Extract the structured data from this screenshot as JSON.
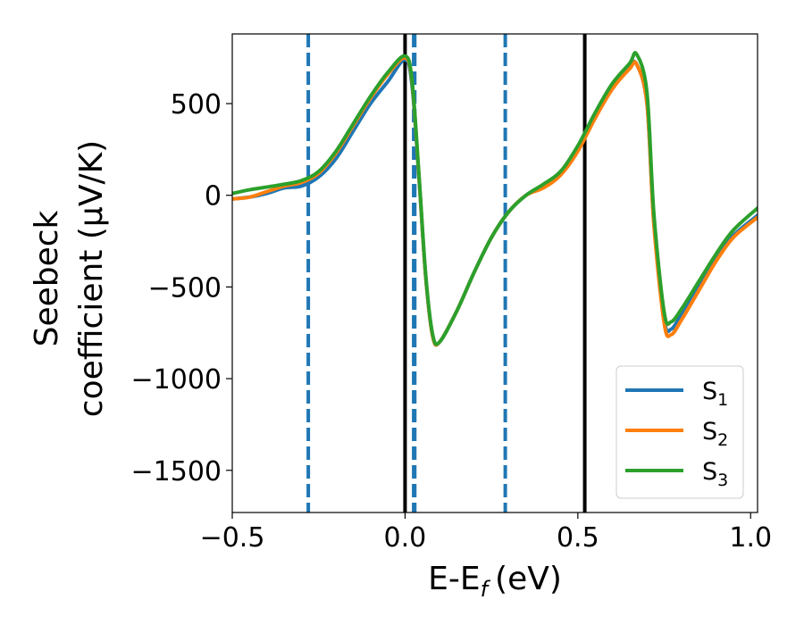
{
  "chart_data": {
    "type": "line",
    "title": "",
    "xlabel": "E-E",
    "xlabel_sub": "f",
    "xlabel_unit": "(eV)",
    "ylabel_line1": "Seebeck",
    "ylabel_line2": "coefficient  (μV/K)",
    "xlim": [
      -0.5,
      1.02
    ],
    "ylim": [
      -1730,
      880
    ],
    "xticks": [
      -0.5,
      0.0,
      0.5,
      1.0
    ],
    "xtick_labels": [
      "−0.5",
      "0.0",
      "0.5",
      "1.0"
    ],
    "yticks": [
      -1500,
      -1000,
      -500,
      0,
      500
    ],
    "ytick_labels": [
      "−1500",
      "−1000",
      "−500",
      "0",
      "500"
    ],
    "grid": false,
    "legend_position": "lower-right",
    "vlines": [
      {
        "x": -0.28,
        "style": "dashed",
        "color": "#1f77b4"
      },
      {
        "x": 0.0,
        "style": "solid",
        "color": "#000000"
      },
      {
        "x": 0.025,
        "style": "dashed",
        "color": "#1f77b4"
      },
      {
        "x": 0.028,
        "style": "dashed",
        "color": "#1f77b4"
      },
      {
        "x": 0.29,
        "style": "dashed",
        "color": "#1f77b4"
      },
      {
        "x": 0.52,
        "style": "solid",
        "color": "#000000"
      }
    ],
    "series": [
      {
        "name": "S",
        "sub": "1",
        "color": "#1f77b4",
        "x": [
          -0.5,
          -0.45,
          -0.4,
          -0.35,
          -0.3,
          -0.25,
          -0.2,
          -0.15,
          -0.1,
          -0.05,
          0.0,
          0.02,
          0.04,
          0.06,
          0.08,
          0.1,
          0.15,
          0.2,
          0.25,
          0.3,
          0.35,
          0.4,
          0.45,
          0.5,
          0.55,
          0.6,
          0.65,
          0.67,
          0.7,
          0.72,
          0.75,
          0.77,
          0.8,
          0.85,
          0.9,
          0.95,
          1.02
        ],
        "y": [
          -20,
          -10,
          10,
          40,
          50,
          100,
          200,
          350,
          500,
          620,
          740,
          600,
          100,
          -450,
          -770,
          -800,
          -630,
          -420,
          -230,
          -90,
          0,
          50,
          120,
          250,
          430,
          590,
          700,
          715,
          500,
          -150,
          -680,
          -730,
          -650,
          -500,
          -350,
          -220,
          -110
        ]
      },
      {
        "name": "S",
        "sub": "2",
        "color": "#ff7f0e",
        "x": [
          -0.5,
          -0.45,
          -0.4,
          -0.35,
          -0.3,
          -0.25,
          -0.2,
          -0.15,
          -0.1,
          -0.05,
          0.0,
          0.02,
          0.04,
          0.06,
          0.08,
          0.1,
          0.15,
          0.2,
          0.25,
          0.3,
          0.35,
          0.4,
          0.45,
          0.5,
          0.55,
          0.6,
          0.65,
          0.67,
          0.7,
          0.72,
          0.75,
          0.77,
          0.8,
          0.85,
          0.9,
          0.95,
          1.02
        ],
        "y": [
          -20,
          -10,
          20,
          50,
          70,
          120,
          230,
          380,
          530,
          660,
          750,
          620,
          110,
          -450,
          -770,
          -800,
          -630,
          -420,
          -230,
          -90,
          0,
          40,
          110,
          240,
          420,
          580,
          690,
          715,
          500,
          -160,
          -700,
          -760,
          -680,
          -520,
          -360,
          -230,
          -120
        ]
      },
      {
        "name": "S",
        "sub": "3",
        "color": "#2ca02c",
        "x": [
          -0.5,
          -0.45,
          -0.4,
          -0.35,
          -0.3,
          -0.25,
          -0.2,
          -0.15,
          -0.1,
          -0.05,
          0.0,
          0.02,
          0.04,
          0.06,
          0.08,
          0.1,
          0.15,
          0.2,
          0.25,
          0.3,
          0.35,
          0.4,
          0.45,
          0.5,
          0.55,
          0.6,
          0.65,
          0.67,
          0.7,
          0.72,
          0.75,
          0.77,
          0.8,
          0.85,
          0.9,
          0.95,
          1.02
        ],
        "y": [
          10,
          30,
          45,
          60,
          80,
          130,
          240,
          390,
          540,
          670,
          760,
          630,
          120,
          -440,
          -760,
          -800,
          -630,
          -420,
          -230,
          -90,
          0,
          60,
          130,
          270,
          450,
          610,
          720,
          770,
          560,
          -100,
          -640,
          -690,
          -620,
          -470,
          -320,
          -190,
          -70
        ]
      }
    ]
  }
}
